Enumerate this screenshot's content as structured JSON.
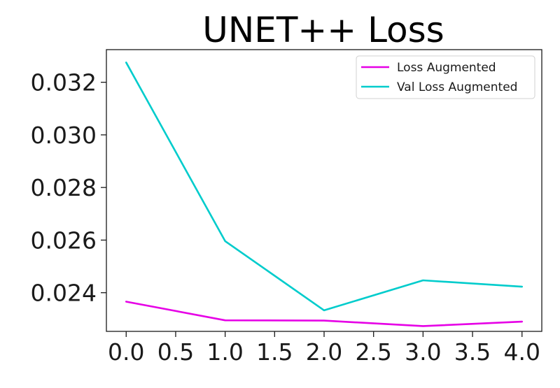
{
  "chart_data": {
    "type": "line",
    "title": "UNET++ Loss",
    "xlabel": "",
    "ylabel": "",
    "x": [
      0,
      1,
      2,
      3,
      4
    ],
    "xticks": [
      "0.0",
      "0.5",
      "1.0",
      "1.5",
      "2.0",
      "2.5",
      "3.0",
      "3.5",
      "4.0"
    ],
    "yticks": [
      "0.024",
      "0.026",
      "0.028",
      "0.030",
      "0.032"
    ],
    "xlim": [
      -0.2,
      4.2
    ],
    "ylim": [
      0.02253,
      0.03324
    ],
    "grid": false,
    "legend_position": "top-right",
    "series": [
      {
        "name": "Loss Augmented",
        "color": "#e600e6",
        "values": [
          0.02366,
          0.02295,
          0.02294,
          0.02273,
          0.0229
        ]
      },
      {
        "name": "Val Loss Augmented",
        "color": "#00cccc",
        "values": [
          0.03275,
          0.02596,
          0.02333,
          0.02447,
          0.02423
        ]
      }
    ]
  }
}
